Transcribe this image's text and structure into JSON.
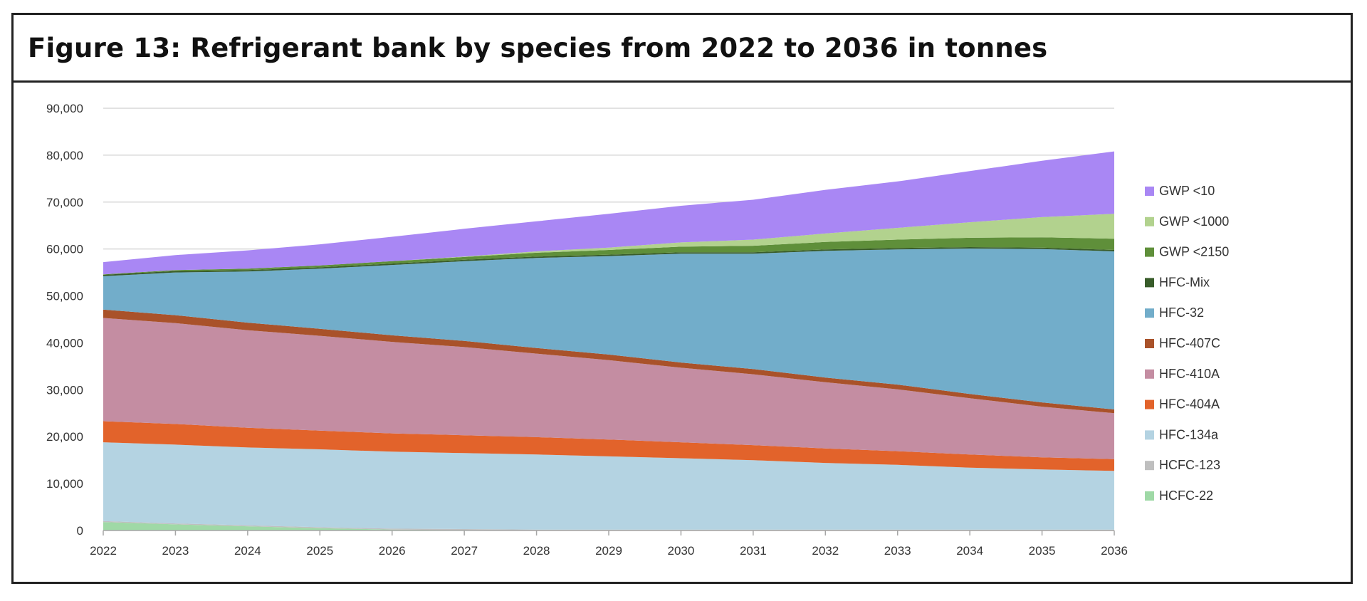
{
  "chart_data": {
    "type": "area",
    "stacked": true,
    "title": "Figure 13: Refrigerant bank by species from 2022 to 2036 in tonnes",
    "xlabel": "",
    "ylabel": "",
    "x": [
      "2022",
      "2023",
      "2024",
      "2025",
      "2026",
      "2027",
      "2028",
      "2029",
      "2030",
      "2031",
      "2032",
      "2033",
      "2034",
      "2035",
      "2036"
    ],
    "ylim": [
      0,
      90000
    ],
    "yticks": [
      0,
      10000,
      20000,
      30000,
      40000,
      50000,
      60000,
      70000,
      80000,
      90000
    ],
    "ytick_labels": [
      "0",
      "10,000",
      "20,000",
      "30,000",
      "40,000",
      "50,000",
      "60,000",
      "70,000",
      "80,000",
      "90,000"
    ],
    "grid": true,
    "legend_position": "right",
    "series": [
      {
        "name": "HCFC-22",
        "color": "#9fd9a6",
        "values": [
          1800,
          1300,
          900,
          500,
          200,
          100,
          0,
          0,
          0,
          0,
          0,
          0,
          0,
          0,
          0
        ]
      },
      {
        "name": "HCFC-123",
        "color": "#bfbfbf",
        "values": [
          200,
          200,
          200,
          200,
          200,
          200,
          200,
          200,
          200,
          200,
          200,
          200,
          200,
          200,
          200
        ]
      },
      {
        "name": "HFC-134a",
        "color": "#b4d3e2",
        "values": [
          16800,
          16800,
          16600,
          16600,
          16400,
          16200,
          16000,
          15600,
          15200,
          14800,
          14200,
          13800,
          13200,
          12800,
          12500
        ]
      },
      {
        "name": "HFC-404A",
        "color": "#e2632b",
        "values": [
          4500,
          4400,
          4200,
          4000,
          3900,
          3800,
          3700,
          3600,
          3400,
          3200,
          3100,
          2900,
          2800,
          2600,
          2500
        ]
      },
      {
        "name": "HFC-410A",
        "color": "#c48da2",
        "values": [
          22000,
          21500,
          20800,
          20200,
          19500,
          18800,
          17800,
          16900,
          15900,
          15100,
          14100,
          13200,
          12000,
          10800,
          9800
        ]
      },
      {
        "name": "HFC-407C",
        "color": "#a9522a",
        "values": [
          1800,
          1700,
          1600,
          1500,
          1400,
          1300,
          1200,
          1200,
          1100,
          1100,
          1000,
          1000,
          900,
          900,
          800
        ]
      },
      {
        "name": "HFC-32",
        "color": "#72adca",
        "values": [
          7100,
          9100,
          10900,
          12800,
          15000,
          17000,
          19200,
          21000,
          23200,
          24600,
          27000,
          28800,
          31000,
          32700,
          33700
        ]
      },
      {
        "name": "HFC-Mix",
        "color": "#385c2a",
        "values": [
          300,
          300,
          300,
          300,
          300,
          300,
          300,
          300,
          300,
          300,
          300,
          300,
          300,
          300,
          300
        ]
      },
      {
        "name": "GWP <2150",
        "color": "#5f8f3a",
        "values": [
          100,
          200,
          300,
          400,
          500,
          600,
          800,
          1000,
          1200,
          1400,
          1600,
          1800,
          2000,
          2200,
          2400
        ]
      },
      {
        "name": "GWP <1000",
        "color": "#b2d28e",
        "values": [
          0,
          0,
          0,
          0,
          0,
          100,
          300,
          500,
          900,
          1300,
          1800,
          2500,
          3300,
          4300,
          5300
        ]
      },
      {
        "name": "GWP <10",
        "color": "#a987f4",
        "values": [
          2600,
          3200,
          3900,
          4500,
          5200,
          5900,
          6400,
          7200,
          7800,
          8500,
          9300,
          9900,
          10900,
          12000,
          13300
        ]
      }
    ]
  }
}
